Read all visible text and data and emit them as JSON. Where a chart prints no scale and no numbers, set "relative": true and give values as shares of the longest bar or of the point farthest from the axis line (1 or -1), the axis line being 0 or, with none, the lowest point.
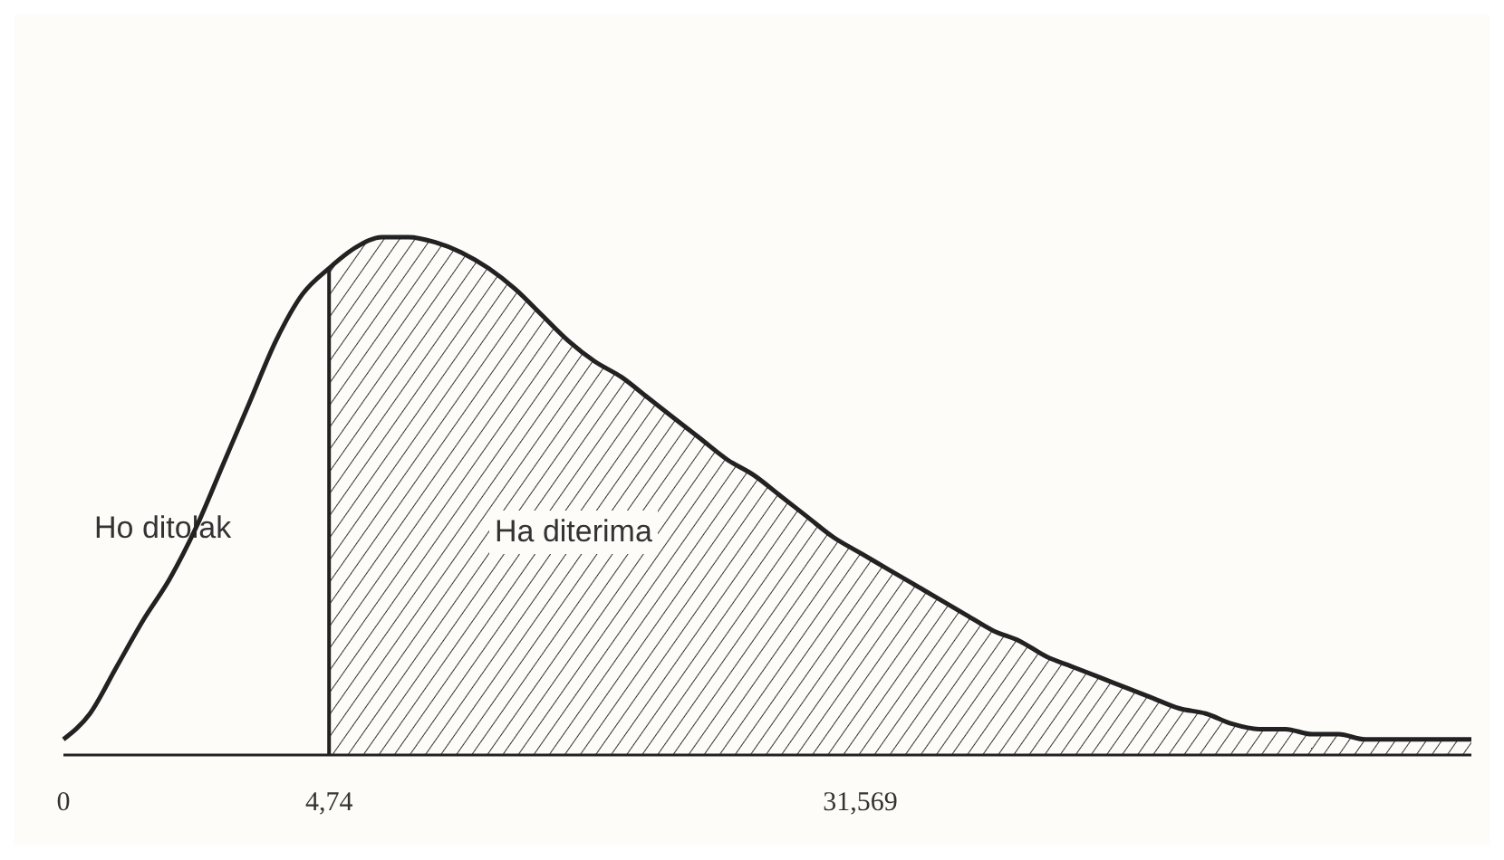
{
  "chart_data": {
    "type": "line",
    "relative": true,
    "categories": [
      "0",
      null,
      null,
      null,
      null,
      null,
      null,
      null,
      null,
      null,
      "4,74",
      null,
      null,
      null,
      null,
      null,
      null,
      null,
      null,
      null,
      null,
      null,
      null,
      null,
      null,
      null,
      null,
      null,
      null,
      null,
      "31,569",
      null,
      null,
      null,
      null,
      null,
      null,
      null,
      null,
      null,
      null,
      null,
      null,
      null,
      null,
      null,
      null,
      null,
      null,
      null,
      null,
      null,
      null,
      null
    ],
    "series": [
      {
        "type": "area",
        "color": "#333333",
        "values": [
          null,
          null,
          null,
          null,
          null,
          null,
          null,
          null,
          null,
          null,
          0.94,
          0.98,
          1.0,
          1.0,
          0.99,
          0.97,
          0.94,
          0.9,
          0.85,
          0.8,
          0.76,
          0.73,
          0.69,
          0.65,
          0.61,
          0.57,
          0.54,
          0.5,
          0.46,
          0.42,
          0.39,
          0.36,
          0.33,
          0.3,
          0.27,
          0.24,
          0.22,
          0.19,
          0.17,
          0.15,
          0.13,
          0.11,
          0.09,
          0.08,
          0.06,
          0.05,
          0.05,
          0.04,
          0.04,
          0.03,
          0.03,
          0.03,
          0.03,
          0.03
        ]
      },
      {
        "color": "#222222",
        "values": [
          0.03,
          0.08,
          0.17,
          0.26,
          0.34,
          0.44,
          0.56,
          0.68,
          0.8,
          0.89,
          0.94,
          0.98,
          1.0,
          1.0,
          0.99,
          0.97,
          0.94,
          0.9,
          0.85,
          0.8,
          0.76,
          0.73,
          0.69,
          0.65,
          0.61,
          0.57,
          0.54,
          0.5,
          0.46,
          0.42,
          0.39,
          0.36,
          0.33,
          0.3,
          0.27,
          0.24,
          0.22,
          0.19,
          0.17,
          0.15,
          0.13,
          0.11,
          0.09,
          0.08,
          0.06,
          0.05,
          0.05,
          0.04,
          0.04,
          0.03,
          0.03,
          0.03,
          0.03,
          0.03
        ]
      }
    ],
    "ref_lines": [
      {
        "axis": "x",
        "value": "4,74",
        "color": "#222222"
      }
    ],
    "annotations": [
      "Ho ditolak",
      "Ha diterima"
    ]
  }
}
